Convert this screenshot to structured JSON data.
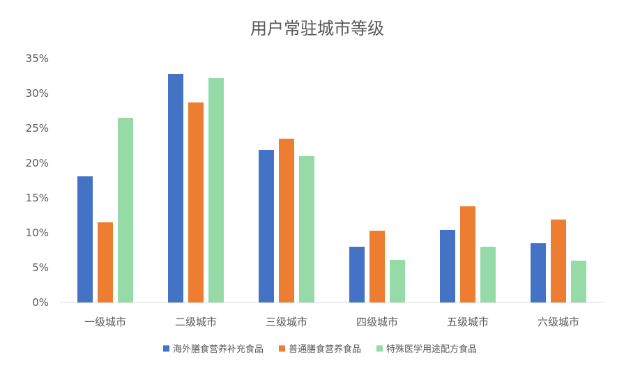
{
  "chart_data": {
    "type": "bar",
    "title": "用户常驻城市等级",
    "xlabel": "",
    "ylabel": "",
    "categories": [
      "一级城市",
      "二级城市",
      "三级城市",
      "四级城市",
      "五级城市",
      "六级城市"
    ],
    "series": [
      {
        "name": "海外膳食营养补充食品",
        "color": "#4472C4",
        "values": [
          18.1,
          32.8,
          21.9,
          8.0,
          10.4,
          8.5
        ]
      },
      {
        "name": "普通膳食营养食品",
        "color": "#ED7D31",
        "values": [
          11.5,
          28.7,
          23.5,
          10.3,
          13.8,
          11.9
        ]
      },
      {
        "name": "特殊医学用途配方食品",
        "color": "#96DBA7",
        "values": [
          26.5,
          32.2,
          21.0,
          6.1,
          8.0,
          6.0
        ]
      }
    ],
    "ylim": [
      0,
      35
    ],
    "y_ticks": [
      "0%",
      "5%",
      "10%",
      "15%",
      "20%",
      "25%",
      "30%",
      "35%"
    ],
    "grid": false,
    "legend_position": "bottom"
  }
}
